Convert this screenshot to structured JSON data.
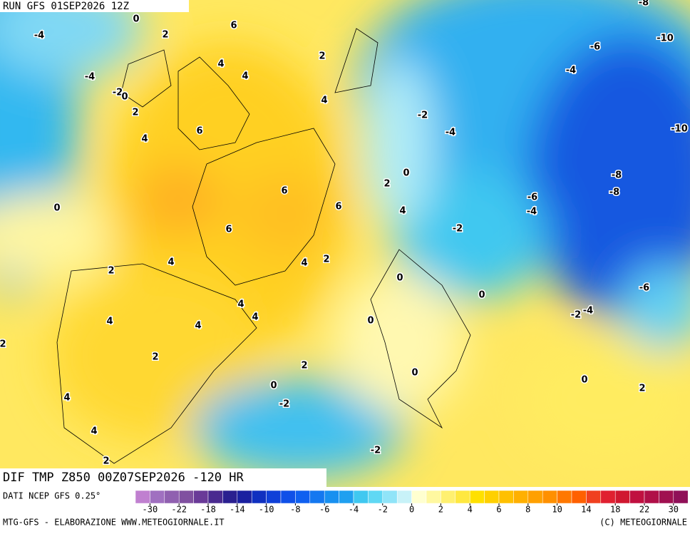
{
  "header": {
    "run": "RUN GFS 01SEP2026 12Z"
  },
  "footer": {
    "title": "DIF TMP Z850 00Z07SEP2026 -120 HR",
    "source": "DATI NCEP GFS 0.25°",
    "credit": "MTG-GFS - ELABORAZIONE WWW.METEOGIORNALE.IT",
    "copyright": "(C) METEOGIORNALE"
  },
  "colorbar": {
    "colors": [
      "#c080d0",
      "#a070c0",
      "#9060b0",
      "#8050a0",
      "#6a3a98",
      "#4a2a90",
      "#2a2090",
      "#1a20a0",
      "#1030c0",
      "#1040d8",
      "#1050e8",
      "#1060f0",
      "#1478f0",
      "#1890f0",
      "#20a0f0",
      "#40c8f0",
      "#60d8f4",
      "#90e4f8",
      "#c8f2f8",
      "#ffffd0",
      "#fff8a0",
      "#fff070",
      "#ffe840",
      "#ffe000",
      "#ffd000",
      "#ffc000",
      "#ffb000",
      "#ffa000",
      "#ff9000",
      "#ff7800",
      "#ff6000",
      "#f04020",
      "#e02030",
      "#d01830",
      "#c01040",
      "#b01048",
      "#a01050",
      "#901058"
    ],
    "ticks": [
      -30,
      -22,
      -18,
      -14,
      -10,
      -8,
      -6,
      -4,
      -2,
      0,
      2,
      4,
      6,
      8,
      10,
      14,
      18,
      22,
      30
    ]
  },
  "map": {
    "labels": [
      0,
      -4,
      2,
      6,
      2,
      4,
      4,
      -4,
      -2,
      0,
      2,
      4,
      -2,
      -4,
      6,
      4,
      0,
      2,
      6,
      6,
      4,
      0,
      6,
      -2,
      2,
      4,
      4,
      2,
      0,
      0,
      4,
      4,
      4,
      4,
      0,
      2,
      2,
      2,
      0,
      0,
      0,
      2,
      4,
      -2,
      4,
      -2,
      2,
      -6,
      -10,
      -4,
      -10,
      -8,
      -8,
      -6,
      -4,
      -6,
      -2,
      -4,
      -8
    ]
  }
}
